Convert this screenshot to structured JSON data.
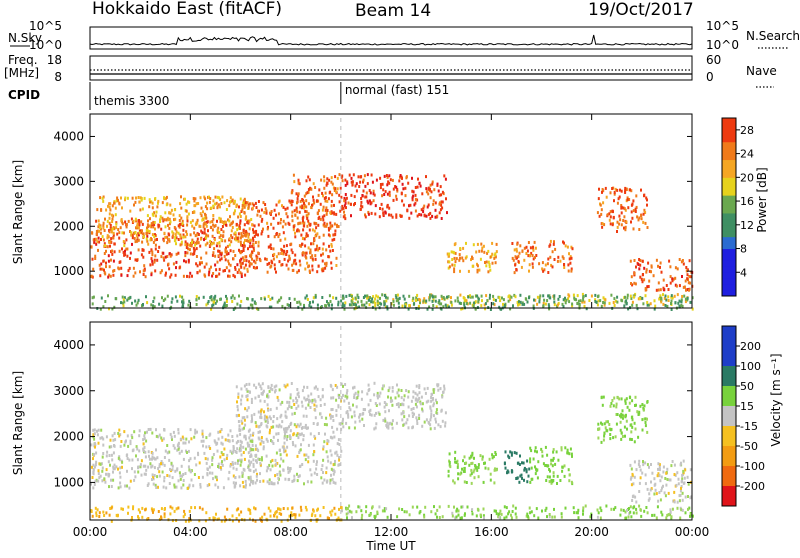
{
  "header": {
    "title": "Hokkaido East (fitACF)",
    "beam": "Beam 14",
    "date": "19/Oct/2017"
  },
  "nsky_panel": {
    "left_label": "N.Sky",
    "right_label": "N.Search",
    "left_ticks": [
      "10^5",
      "10^0"
    ],
    "right_ticks": [
      "10^5",
      "10^0"
    ]
  },
  "freq_panel": {
    "left_label_line1": "Freq.",
    "left_label_line2": "[MHz]",
    "right_label": "Nave",
    "left_ticks": [
      "18",
      "8"
    ],
    "right_ticks": [
      "60",
      "0"
    ]
  },
  "cpid_panel": {
    "label": "CPID",
    "segments": [
      {
        "label": "themis 3300",
        "start_hour": 0
      },
      {
        "label": "normal (fast) 151",
        "start_hour": 10
      }
    ]
  },
  "x_axis": {
    "label": "Time UT",
    "ticks": [
      "00:00",
      "04:00",
      "08:00",
      "12:00",
      "16:00",
      "20:00",
      "00:00"
    ],
    "tick_hours": [
      0,
      4,
      8,
      12,
      16,
      20,
      24
    ],
    "range_hours": [
      0,
      24
    ]
  },
  "chart_data": [
    {
      "type": "heatmap",
      "title": "",
      "xlabel": "Time UT",
      "ylabel": "Slant Range [km]",
      "ylim": [
        180,
        4500
      ],
      "yticks": [
        "1000",
        "2000",
        "3000",
        "4000"
      ],
      "ytick_values": [
        1000,
        2000,
        3000,
        4000
      ],
      "colorbar": {
        "label": "Power [dB]",
        "ticks": [
          "4",
          "8",
          "12",
          "16",
          "20",
          "24",
          "28"
        ],
        "tick_values": [
          4,
          8,
          12,
          16,
          20,
          24,
          28
        ],
        "range": [
          0,
          30
        ]
      },
      "scatter_regions": [
        {
          "t0": 0.0,
          "t1": 6.5,
          "r0": 900,
          "r1": 2200,
          "value": 27
        },
        {
          "t0": 0.2,
          "t1": 6.4,
          "r0": 1600,
          "r1": 2700,
          "value": 22
        },
        {
          "t0": 5.8,
          "t1": 9.8,
          "r0": 1000,
          "r1": 2600,
          "value": 26
        },
        {
          "t0": 8.0,
          "t1": 10.0,
          "r0": 2000,
          "r1": 3200,
          "value": 26
        },
        {
          "t0": 10.0,
          "t1": 14.2,
          "r0": 2200,
          "r1": 3200,
          "value": 28
        },
        {
          "t0": 14.2,
          "t1": 16.2,
          "r0": 1000,
          "r1": 1700,
          "value": 22
        },
        {
          "t0": 16.8,
          "t1": 19.2,
          "r0": 1000,
          "r1": 1700,
          "value": 25
        },
        {
          "t0": 20.2,
          "t1": 22.2,
          "r0": 1900,
          "r1": 2900,
          "value": 26
        },
        {
          "t0": 21.5,
          "t1": 24.0,
          "r0": 600,
          "r1": 1300,
          "value": 27
        },
        {
          "t0": 10.0,
          "t1": 24.0,
          "r0": 250,
          "r1": 520,
          "value": 18
        },
        {
          "t0": 0.0,
          "t1": 24.0,
          "r0": 180,
          "r1": 500,
          "value": 14
        }
      ]
    },
    {
      "type": "heatmap",
      "title": "",
      "xlabel": "Time UT",
      "ylabel": "Slant Range [km]",
      "ylim": [
        180,
        4500
      ],
      "yticks": [
        "1000",
        "2000",
        "3000",
        "4000"
      ],
      "ytick_values": [
        1000,
        2000,
        3000,
        4000
      ],
      "colorbar": {
        "label": "Velocity [m s⁻¹]",
        "ticks": [
          "200",
          "100",
          "50",
          "15",
          "-15",
          "-50",
          "-100",
          "-200"
        ],
        "tick_values": [
          200,
          100,
          50,
          15,
          -15,
          -50,
          -100,
          -200
        ],
        "range": [
          -250,
          250
        ]
      },
      "scatter_regions": [
        {
          "t0": 0.0,
          "t1": 6.5,
          "r0": 900,
          "r1": 2200,
          "value": 0
        },
        {
          "t0": 5.8,
          "t1": 10.0,
          "r0": 1000,
          "r1": 3200,
          "value": 0
        },
        {
          "t0": 10.0,
          "t1": 14.2,
          "r0": 2200,
          "r1": 3200,
          "value": 5
        },
        {
          "t0": 14.2,
          "t1": 16.2,
          "r0": 1000,
          "r1": 1700,
          "value": 40
        },
        {
          "t0": 16.5,
          "t1": 17.5,
          "r0": 1000,
          "r1": 1700,
          "value": 120
        },
        {
          "t0": 17.5,
          "t1": 19.2,
          "r0": 1000,
          "r1": 1800,
          "value": 45
        },
        {
          "t0": 20.2,
          "t1": 22.2,
          "r0": 1900,
          "r1": 2900,
          "value": 40
        },
        {
          "t0": 21.5,
          "t1": 24.0,
          "r0": 600,
          "r1": 1500,
          "value": 0
        },
        {
          "t0": 10.0,
          "t1": 24.0,
          "r0": 250,
          "r1": 520,
          "value": 30
        },
        {
          "t0": 0.0,
          "t1": 10.0,
          "r0": 180,
          "r1": 500,
          "value": -40
        }
      ]
    }
  ]
}
